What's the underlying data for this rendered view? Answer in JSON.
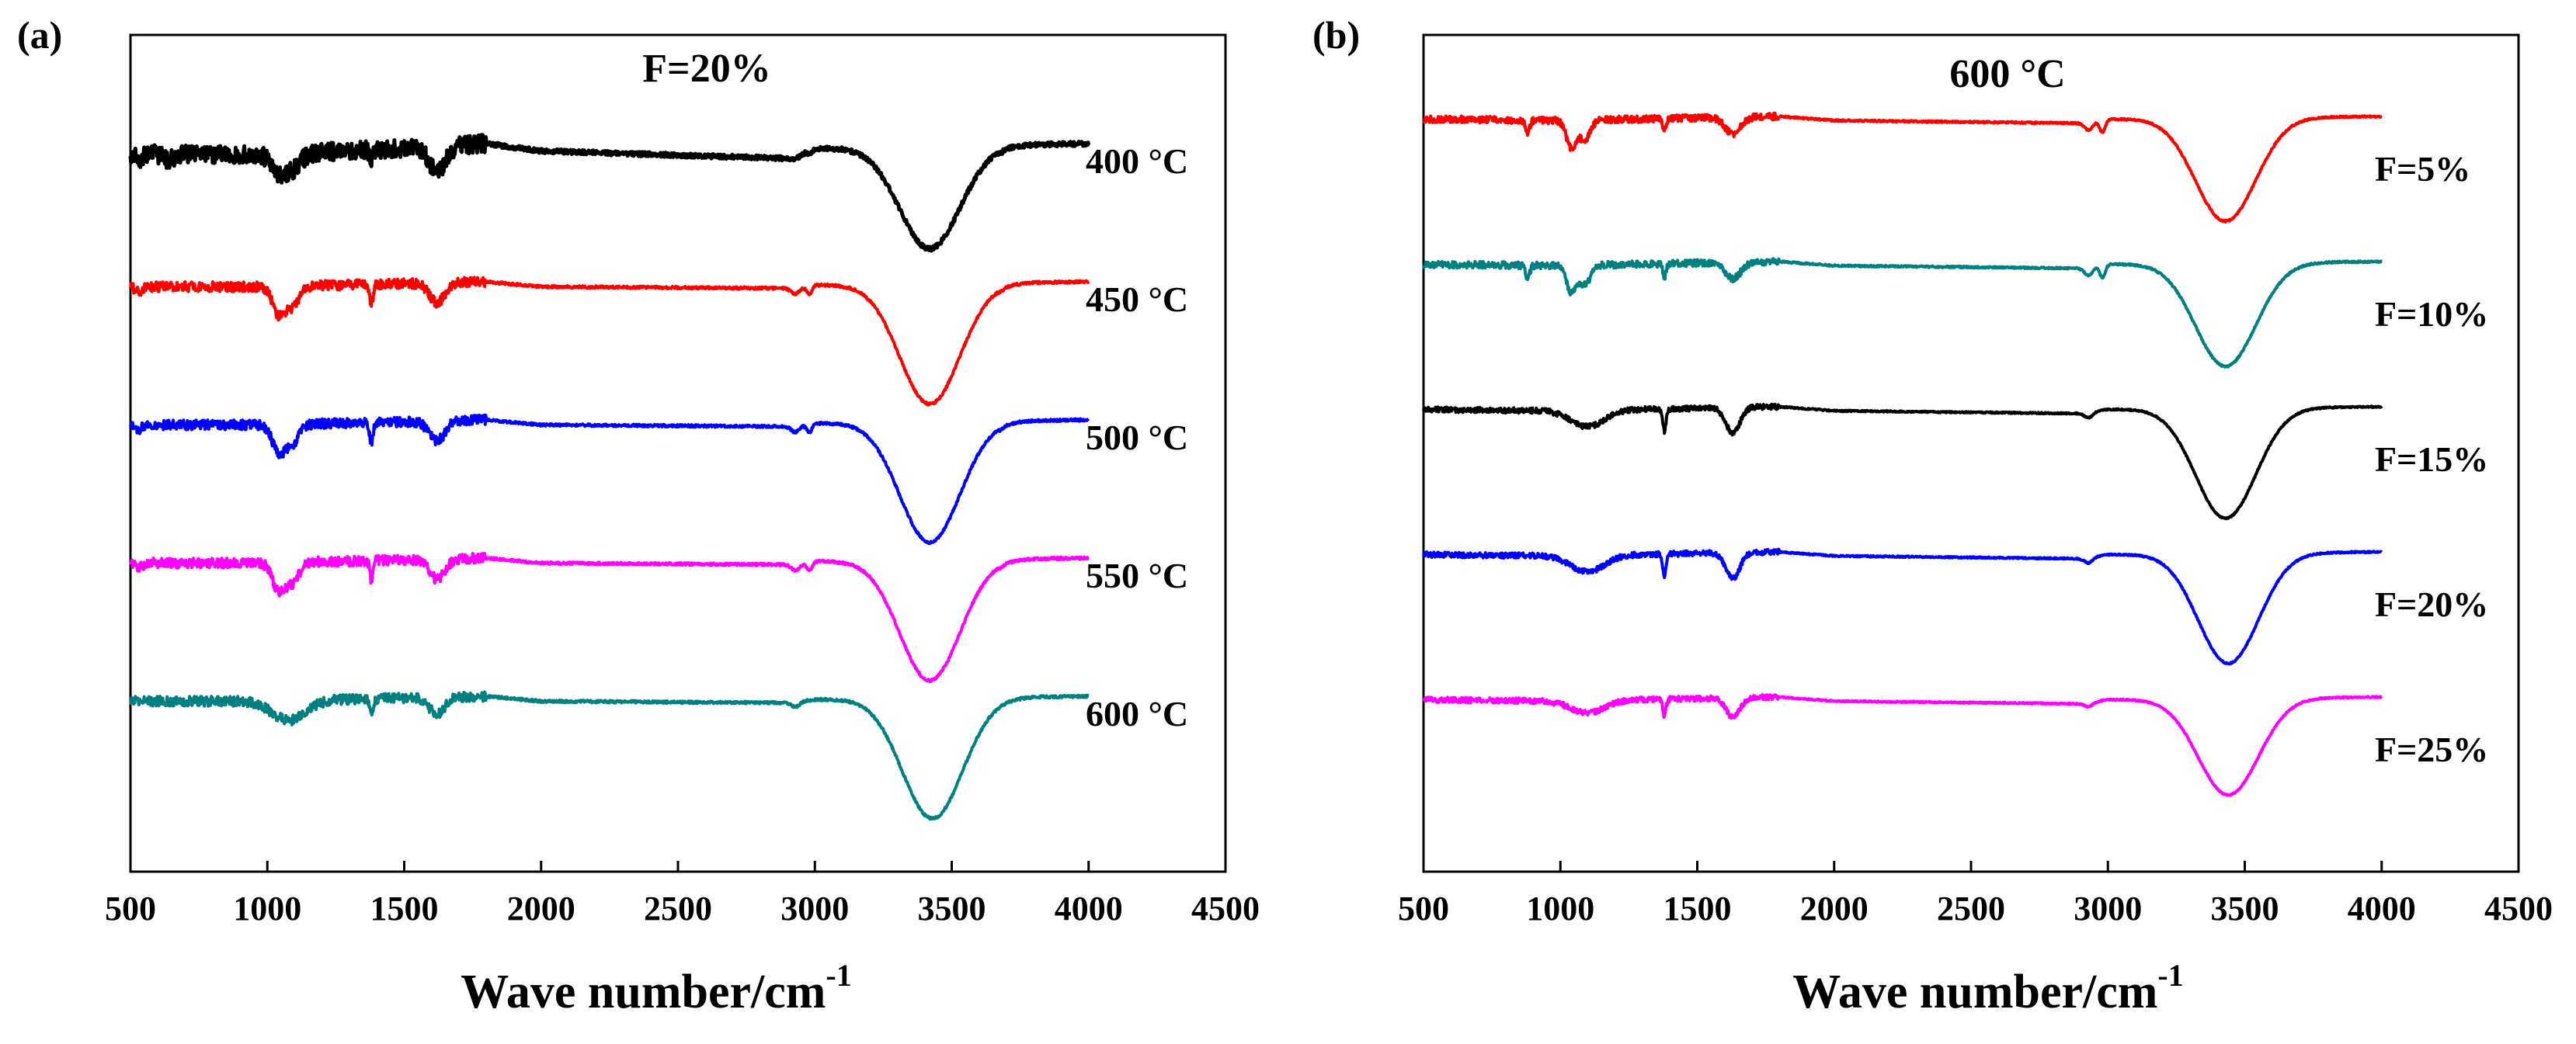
{
  "chart_data": [
    {
      "type": "line",
      "panel_label": "(a)",
      "title": "F=20%",
      "xlabel": "Wave number/cm",
      "xlabel_superscript": "-1",
      "ylabel": "",
      "xlim": [
        500,
        4500
      ],
      "xticks": [
        500,
        1000,
        1500,
        2000,
        2500,
        3000,
        3500,
        4000,
        4500
      ],
      "x_range": [
        500,
        4000
      ],
      "y_axis_ticks": false,
      "series": [
        {
          "name": "400 °C",
          "color": "#000000",
          "offset": 0,
          "depth": 1.25,
          "noise": 1.1,
          "bands": [
            [
              530,
              12,
              0.35
            ],
            [
              640,
              20,
              0.35
            ],
            [
              1040,
              25,
              0.9
            ],
            [
              1090,
              30,
              0.9
            ],
            [
              1380,
              6,
              0.6
            ],
            [
              1620,
              30,
              1.5
            ],
            [
              2930,
              15,
              0.2
            ],
            [
              2980,
              10,
              0.15
            ],
            [
              3420,
              110,
              6.2
            ],
            [
              3680,
              8,
              0.1
            ]
          ],
          "baseline": [
            [
              500,
              0.6
            ],
            [
              1000,
              0.7
            ],
            [
              1800,
              0.0
            ],
            [
              2000,
              0.45
            ],
            [
              2900,
              0.9
            ],
            [
              3000,
              0.3
            ],
            [
              4000,
              0.0
            ]
          ]
        },
        {
          "name": "450 °C",
          "color": "#ff0000",
          "offset": 1,
          "depth": 1.25,
          "noise": 0.6,
          "bands": [
            [
              530,
              12,
              0.3
            ],
            [
              1040,
              22,
              1.6
            ],
            [
              1090,
              25,
              1.2
            ],
            [
              1380,
              6,
              1.2
            ],
            [
              1620,
              28,
              1.2
            ],
            [
              2930,
              15,
              0.4
            ],
            [
              2980,
              10,
              0.5
            ],
            [
              3420,
              110,
              7.3
            ],
            [
              3680,
              8,
              0.1
            ]
          ],
          "baseline": [
            [
              500,
              0.3
            ],
            [
              1000,
              0.3
            ],
            [
              1800,
              0.0
            ],
            [
              2000,
              0.3
            ],
            [
              2900,
              0.4
            ],
            [
              3000,
              0.2
            ],
            [
              4000,
              0.0
            ]
          ]
        },
        {
          "name": "500 °C",
          "color": "#0000ff",
          "offset": 2,
          "depth": 1.25,
          "noise": 0.6,
          "bands": [
            [
              530,
              12,
              0.3
            ],
            [
              1040,
              22,
              1.6
            ],
            [
              1090,
              25,
              1.2
            ],
            [
              1380,
              6,
              1.2
            ],
            [
              1620,
              28,
              1.2
            ],
            [
              2930,
              15,
              0.4
            ],
            [
              2980,
              10,
              0.5
            ],
            [
              3420,
              110,
              7.3
            ],
            [
              3680,
              8,
              0.1
            ]
          ],
          "baseline": [
            [
              500,
              0.3
            ],
            [
              1000,
              0.3
            ],
            [
              1800,
              0.0
            ],
            [
              2000,
              0.3
            ],
            [
              2900,
              0.4
            ],
            [
              3000,
              0.2
            ],
            [
              4000,
              0.0
            ]
          ]
        },
        {
          "name": "550 °C",
          "color": "#ff00ff",
          "offset": 3,
          "depth": 1.25,
          "noise": 0.6,
          "bands": [
            [
              530,
              12,
              0.3
            ],
            [
              1040,
              22,
              1.6
            ],
            [
              1090,
              25,
              1.2
            ],
            [
              1380,
              6,
              1.2
            ],
            [
              1620,
              28,
              1.2
            ],
            [
              2930,
              15,
              0.4
            ],
            [
              2980,
              10,
              0.5
            ],
            [
              3420,
              110,
              7.3
            ],
            [
              3680,
              8,
              0.1
            ]
          ],
          "baseline": [
            [
              500,
              0.3
            ],
            [
              1000,
              0.3
            ],
            [
              1800,
              0.0
            ],
            [
              2000,
              0.3
            ],
            [
              2900,
              0.4
            ],
            [
              3000,
              0.2
            ],
            [
              4000,
              0.0
            ]
          ]
        },
        {
          "name": "600 °C",
          "color": "#008080",
          "offset": 4,
          "depth": 1.25,
          "noise": 0.6,
          "bands": [
            [
              1080,
              60,
              1.2
            ],
            [
              1380,
              6,
              1.0
            ],
            [
              1620,
              28,
              1.0
            ],
            [
              2930,
              15,
              0.3
            ],
            [
              3430,
              110,
              7.3
            ]
          ],
          "baseline": [
            [
              500,
              0.3
            ],
            [
              1000,
              0.3
            ],
            [
              1800,
              0.0
            ],
            [
              2000,
              0.3
            ],
            [
              2900,
              0.4
            ],
            [
              3000,
              0.2
            ],
            [
              4000,
              0.0
            ]
          ]
        }
      ]
    },
    {
      "type": "line",
      "panel_label": "(b)",
      "title": "600 °C",
      "xlabel": "Wave number/cm",
      "xlabel_superscript": "-1",
      "ylabel": "",
      "xlim": [
        500,
        4500
      ],
      "xticks": [
        500,
        1000,
        1500,
        2000,
        2500,
        3000,
        3500,
        4000,
        4500
      ],
      "x_range": [
        500,
        4000
      ],
      "y_axis_ticks": false,
      "series": [
        {
          "name": "F=5%",
          "color": "#ff0000",
          "offset": 0,
          "depth": 1.0,
          "noise": 0.5,
          "bands": [
            [
              880,
              8,
              0.9
            ],
            [
              1040,
              18,
              2.0
            ],
            [
              1090,
              20,
              1.4
            ],
            [
              1380,
              6,
              1.0
            ],
            [
              1630,
              28,
              1.2
            ],
            [
              2930,
              15,
              0.6
            ],
            [
              2980,
              10,
              0.9
            ],
            [
              3430,
              110,
              7.6
            ]
          ],
          "baseline": [
            [
              500,
              0.2
            ],
            [
              1000,
              0.3
            ],
            [
              1800,
              0.0
            ],
            [
              2000,
              0.3
            ],
            [
              2900,
              0.5
            ],
            [
              3000,
              0.2
            ],
            [
              4000,
              0.0
            ]
          ]
        },
        {
          "name": "F=10%",
          "color": "#008080",
          "offset": 1,
          "depth": 1.0,
          "noise": 0.5,
          "bands": [
            [
              880,
              8,
              0.9
            ],
            [
              1040,
              18,
              2.0
            ],
            [
              1090,
              20,
              1.4
            ],
            [
              1380,
              6,
              1.0
            ],
            [
              1630,
              28,
              1.2
            ],
            [
              2930,
              15,
              0.6
            ],
            [
              2980,
              10,
              0.9
            ],
            [
              3430,
              110,
              7.6
            ]
          ],
          "baseline": [
            [
              500,
              0.2
            ],
            [
              1000,
              0.3
            ],
            [
              1800,
              0.0
            ],
            [
              2000,
              0.3
            ],
            [
              2900,
              0.5
            ],
            [
              3000,
              0.2
            ],
            [
              4000,
              0.0
            ]
          ]
        },
        {
          "name": "F=15%",
          "color": "#000000",
          "offset": 2,
          "depth": 1.0,
          "noise": 0.4,
          "bands": [
            [
              1100,
              60,
              1.2
            ],
            [
              1380,
              6,
              1.6
            ],
            [
              1630,
              25,
              1.9
            ],
            [
              2930,
              15,
              0.4
            ],
            [
              3430,
              110,
              8.1
            ]
          ],
          "baseline": [
            [
              500,
              0.2
            ],
            [
              1000,
              0.3
            ],
            [
              1800,
              0.0
            ],
            [
              2000,
              0.3
            ],
            [
              2900,
              0.5
            ],
            [
              3000,
              0.2
            ],
            [
              4000,
              0.0
            ]
          ]
        },
        {
          "name": "F=20%",
          "color": "#0000ff",
          "offset": 3,
          "depth": 1.0,
          "noise": 0.4,
          "bands": [
            [
              1100,
              60,
              1.2
            ],
            [
              1380,
              6,
              1.6
            ],
            [
              1630,
              25,
              1.9
            ],
            [
              2930,
              15,
              0.4
            ],
            [
              3440,
              110,
              8.1
            ]
          ],
          "baseline": [
            [
              500,
              0.2
            ],
            [
              1000,
              0.3
            ],
            [
              1800,
              0.0
            ],
            [
              2000,
              0.3
            ],
            [
              2900,
              0.5
            ],
            [
              3000,
              0.2
            ],
            [
              4000,
              0.0
            ]
          ]
        },
        {
          "name": "F=25%",
          "color": "#ff00ff",
          "offset": 4,
          "depth": 1.0,
          "noise": 0.4,
          "bands": [
            [
              1100,
              60,
              0.9
            ],
            [
              1380,
              6,
              1.2
            ],
            [
              1630,
              25,
              1.4
            ],
            [
              2930,
              15,
              0.3
            ],
            [
              3440,
              110,
              7.1
            ]
          ],
          "baseline": [
            [
              500,
              0.2
            ],
            [
              1000,
              0.3
            ],
            [
              1800,
              0.0
            ],
            [
              2000,
              0.3
            ],
            [
              2900,
              0.5
            ],
            [
              3000,
              0.2
            ],
            [
              4000,
              0.0
            ]
          ]
        }
      ]
    }
  ]
}
